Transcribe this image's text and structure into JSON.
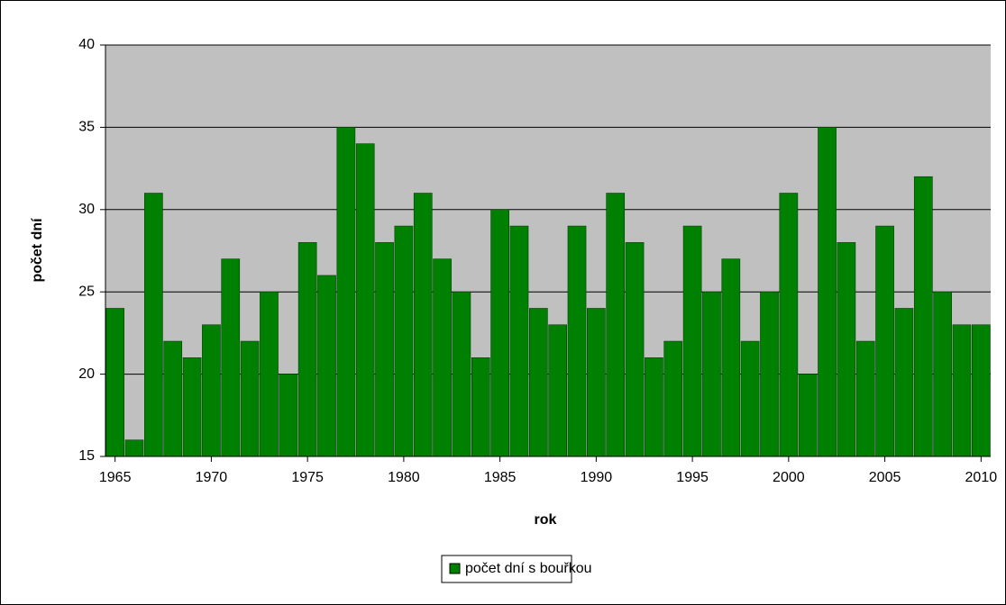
{
  "chart_data": {
    "type": "bar",
    "xlabel": "rok",
    "ylabel": "počet dní",
    "x": [
      1965,
      1966,
      1967,
      1968,
      1969,
      1970,
      1971,
      1972,
      1973,
      1974,
      1975,
      1976,
      1977,
      1978,
      1979,
      1980,
      1981,
      1982,
      1983,
      1984,
      1985,
      1986,
      1987,
      1988,
      1989,
      1990,
      1991,
      1992,
      1993,
      1994,
      1995,
      1996,
      1997,
      1998,
      1999,
      2000,
      2001,
      2002,
      2003,
      2004,
      2005,
      2006,
      2007,
      2008,
      2009,
      2010
    ],
    "series": [
      {
        "name": "počet dní s bouřkou",
        "color": "#008000",
        "values": [
          24,
          16,
          31,
          22,
          21,
          23,
          27,
          22,
          25,
          20,
          28,
          26,
          35,
          34,
          28,
          29,
          31,
          27,
          25,
          21,
          30,
          29,
          24,
          23,
          29,
          24,
          31,
          28,
          21,
          22,
          29,
          25,
          27,
          22,
          25,
          31,
          20,
          35,
          28,
          22,
          29,
          24,
          32,
          25,
          23,
          23
        ]
      }
    ],
    "xlim": [
      1964.5,
      2010.5
    ],
    "xticks": [
      1965,
      1970,
      1975,
      1980,
      1985,
      1990,
      1995,
      2000,
      2005,
      2010
    ],
    "ylim": [
      15,
      40
    ],
    "yticks": [
      15,
      20,
      25,
      30,
      35,
      40
    ],
    "grid": true,
    "legend": "bottom"
  }
}
